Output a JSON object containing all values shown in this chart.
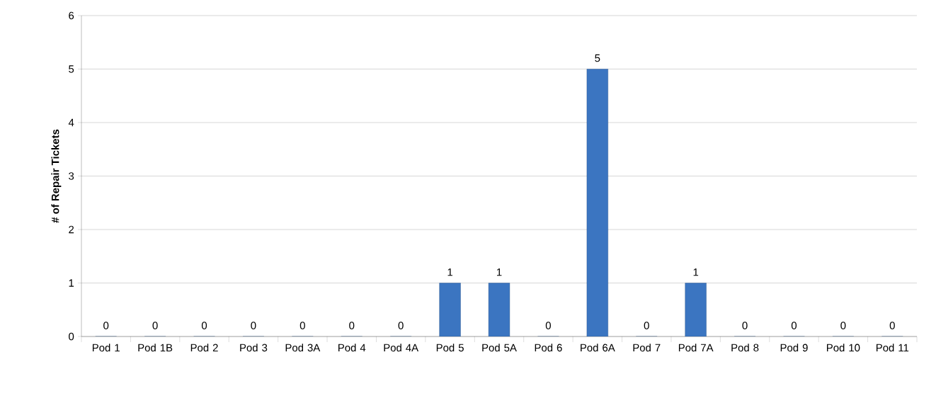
{
  "chart_data": {
    "type": "bar",
    "ylabel": "# of Repair Tickets",
    "categories": [
      "Pod 1",
      "Pod 1B",
      "Pod 2",
      "Pod 3",
      "Pod 3A",
      "Pod 4",
      "Pod 4A",
      "Pod 5",
      "Pod 5A",
      "Pod 6",
      "Pod 6A",
      "Pod 7",
      "Pod 7A",
      "Pod 8",
      "Pod 9",
      "Pod 10",
      "Pod 11"
    ],
    "values": [
      0,
      0,
      0,
      0,
      0,
      0,
      0,
      1,
      1,
      0,
      5,
      0,
      1,
      0,
      0,
      0,
      0
    ],
    "color": "#3b75c1",
    "ylim": [
      0,
      6
    ],
    "yticks": [
      0,
      1,
      2,
      3,
      4,
      5,
      6
    ],
    "grid": "y",
    "data_labels": true
  }
}
